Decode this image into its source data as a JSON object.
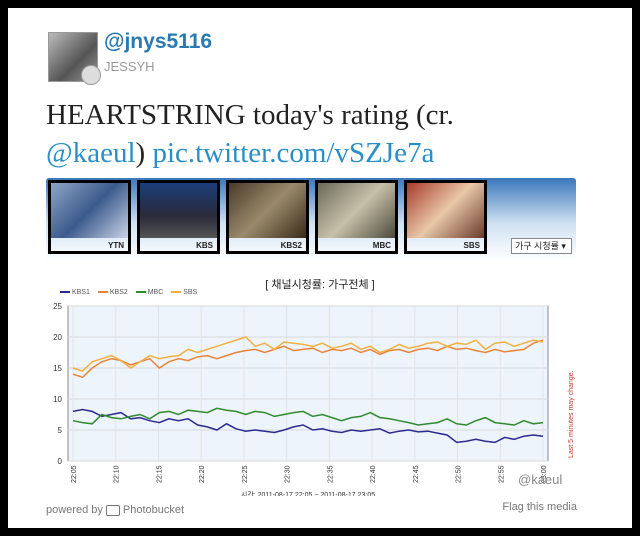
{
  "tweet": {
    "handle": "@jnys5116",
    "name": "JESSYH",
    "text_main": "HEARTSTRING today's rating (cr.",
    "mention": "@kaeul",
    "close_paren": ")",
    "pic_link": "pic.twitter.com/vSZJe7a"
  },
  "channels": [
    {
      "label": "YTN",
      "border": "#d03b74"
    },
    {
      "label": "KBS",
      "border": "#3a3aa8"
    },
    {
      "label": "KBS2",
      "border": "#e8843a"
    },
    {
      "label": "MBC",
      "border": "#3aa83a"
    },
    {
      "label": "SBS",
      "border": "#e8b23a"
    }
  ],
  "select_value": "가구 시청률",
  "chart_data": {
    "type": "line",
    "title": "[ 채널시청률: 가구전체 ]",
    "legend": [
      "KBS1",
      "KBS2",
      "MBC",
      "SBS"
    ],
    "x_ticks": [
      "22:05",
      "22:10",
      "22:15",
      "22:20",
      "22:25",
      "22:30",
      "22:35",
      "22:40",
      "22:45",
      "22:50",
      "22:55",
      "23:00"
    ],
    "y_ticks": [
      "0",
      "5",
      "10",
      "15",
      "20",
      "25"
    ],
    "ylim": [
      0,
      25
    ],
    "range_label": "시간: 2011-08-17 22:05 ~ 2011-08-17 23:05",
    "side_note": "Last 5 minutes may change.",
    "series": [
      {
        "name": "KBS1",
        "color": "#2b2b8f",
        "values": [
          8,
          8.3,
          8,
          7.2,
          7.5,
          7.8,
          6.8,
          7,
          6.5,
          6.2,
          6.8,
          6.5,
          6.8,
          5.8,
          5.5,
          5,
          6,
          5.2,
          4.8,
          5,
          4.8,
          4.6,
          5,
          5.5,
          5.8,
          5,
          5.2,
          4.8,
          4.6,
          5,
          4.8,
          5,
          5.2,
          4.5,
          4.8,
          5,
          4.7,
          4.8,
          4.5,
          4.2,
          3,
          3.2,
          3.5,
          3.2,
          3,
          3.8,
          3.5,
          4,
          4.2,
          4
        ]
      },
      {
        "name": "KBS2",
        "color": "#e8843a",
        "values": [
          14,
          13.5,
          15,
          16,
          16.5,
          16.2,
          15.5,
          16,
          16.5,
          15,
          16,
          16.5,
          16.2,
          16.8,
          17,
          16.5,
          17,
          17.5,
          17.8,
          18,
          17.5,
          18,
          18.5,
          17.8,
          18,
          18.2,
          17.5,
          18,
          17.8,
          18.2,
          17.5,
          18,
          17.2,
          17.8,
          18,
          17.5,
          18,
          18.2,
          17.8,
          18.5,
          18,
          18.2,
          17.8,
          17.5,
          18,
          17.6,
          17.8,
          18,
          19,
          19.5
        ]
      },
      {
        "name": "MBC",
        "color": "#2e8b2e",
        "values": [
          6.5,
          6.2,
          6,
          7.5,
          7,
          6.8,
          7.2,
          7.5,
          6.8,
          7.8,
          8,
          7.5,
          8.2,
          8,
          7.8,
          8.5,
          8.2,
          8,
          7.5,
          8,
          7.8,
          7.2,
          7.5,
          7.8,
          8,
          7.2,
          7.5,
          7,
          6.5,
          7,
          7.2,
          7.8,
          7,
          6.8,
          6.5,
          6.2,
          5.8,
          6,
          6.2,
          6.8,
          6,
          5.8,
          6.5,
          7,
          6.2,
          6,
          5.8,
          6.5,
          6,
          6.2
        ]
      },
      {
        "name": "SBS",
        "color": "#f0b040",
        "values": [
          15,
          14.5,
          16,
          16.5,
          17,
          16.2,
          15,
          16,
          17,
          16.5,
          16.8,
          17,
          18,
          17.5,
          18,
          18.5,
          19,
          19.5,
          20,
          18.5,
          19,
          18,
          19.2,
          19,
          18.8,
          18.5,
          19,
          18.2,
          18.5,
          19,
          18,
          18.5,
          17.5,
          18,
          18.8,
          18.2,
          18.5,
          19,
          19.2,
          18.5,
          19,
          18.8,
          19.5,
          18,
          19,
          19.2,
          18.5,
          19,
          19.5,
          19.2
        ]
      }
    ]
  },
  "watermark": "@kaeul",
  "footer": {
    "powered": "powered by",
    "photobucket": "Photobucket",
    "flag": "Flag this media"
  }
}
